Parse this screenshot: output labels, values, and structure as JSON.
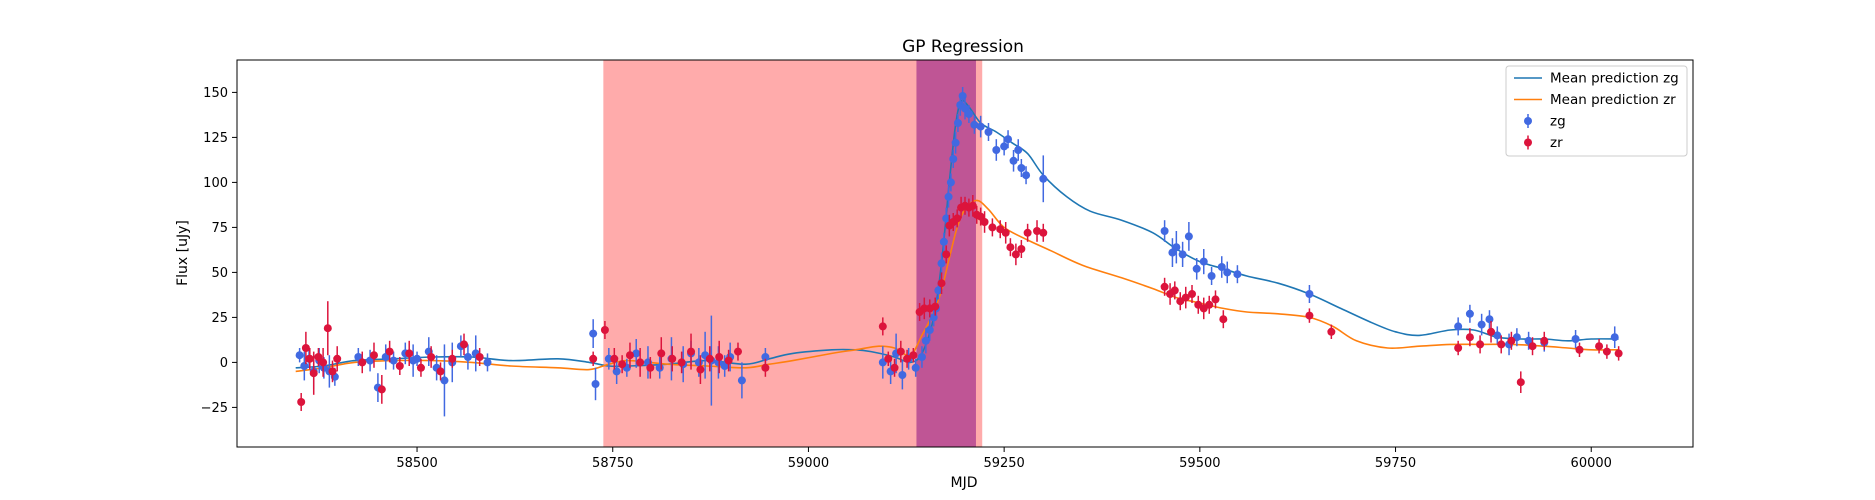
{
  "chart_data": {
    "type": "scatter",
    "title": "GP Regression",
    "xlabel": "MJD",
    "ylabel": "Flux [uJy]",
    "xlim": [
      58270,
      60130
    ],
    "ylim": [
      -47,
      168
    ],
    "xticks": [
      58500,
      58750,
      59000,
      59250,
      59500,
      59750,
      60000
    ],
    "yticks": [
      -25,
      0,
      25,
      50,
      75,
      100,
      125,
      150
    ],
    "grid": false,
    "legend_position": "top-right",
    "colors": {
      "zg_line": "#1f77b4",
      "zr_line": "#ff7f0e",
      "zg_points": "#4169e1",
      "zr_points": "#dc143c",
      "span_red": "#ff0000",
      "span_purple": "#800080"
    },
    "spans": [
      {
        "x_start": 58738,
        "x_end": 59222,
        "color": "#ff0000",
        "alpha": 0.33
      },
      {
        "x_start": 59138,
        "x_end": 59214,
        "color": "#800080",
        "alpha": 0.5
      }
    ],
    "series": [
      {
        "name": "Mean prediction zg",
        "kind": "line",
        "color": "#1f77b4",
        "x": [
          58345,
          58380,
          58420,
          58470,
          58520,
          58570,
          58620,
          58680,
          58720,
          58745,
          58770,
          58820,
          58870,
          58920,
          58950,
          58980,
          59030,
          59060,
          59080,
          59110,
          59130,
          59145,
          59160,
          59170,
          59180,
          59188,
          59195,
          59205,
          59220,
          59240,
          59260,
          59280,
          59300,
          59330,
          59360,
          59400,
          59440,
          59470,
          59500,
          59530,
          59560,
          59600,
          59640,
          59680,
          59720,
          59750,
          59780,
          59820,
          59850,
          59880,
          59910,
          59940,
          59970,
          60000,
          60035
        ],
        "y": [
          -3,
          -2,
          1,
          2,
          3,
          3,
          1,
          2,
          0,
          -2,
          -2,
          -1,
          1,
          -1,
          2,
          5,
          7,
          7,
          6,
          3,
          0,
          5,
          25,
          55,
          100,
          132,
          145,
          142,
          133,
          128,
          122,
          116,
          104,
          92,
          84,
          79,
          72,
          63,
          56,
          52,
          48,
          44,
          38,
          30,
          22,
          17,
          15,
          18,
          18,
          14,
          13,
          13,
          12,
          13,
          13
        ]
      },
      {
        "name": "Mean prediction zr",
        "kind": "line",
        "color": "#ff7f0e",
        "x": [
          58345,
          58380,
          58420,
          58470,
          58520,
          58570,
          58620,
          58680,
          58720,
          58745,
          58770,
          58820,
          58870,
          58920,
          58950,
          58980,
          59030,
          59060,
          59090,
          59110,
          59130,
          59145,
          59160,
          59170,
          59180,
          59190,
          59200,
          59215,
          59230,
          59250,
          59280,
          59310,
          59350,
          59400,
          59440,
          59470,
          59500,
          59530,
          59560,
          59600,
          59640,
          59670,
          59700,
          59740,
          59780,
          59820,
          59860,
          59900,
          59940,
          59970,
          60000,
          60035
        ],
        "y": [
          -5,
          -3,
          0,
          1,
          1,
          0,
          -2,
          -3,
          -4,
          -1,
          1,
          -1,
          -2,
          -3,
          -1,
          1,
          5,
          7,
          9,
          8,
          4,
          15,
          28,
          40,
          58,
          75,
          85,
          90,
          85,
          75,
          68,
          62,
          54,
          47,
          41,
          36,
          33,
          30,
          28,
          27,
          25,
          20,
          12,
          8,
          9,
          10,
          10,
          10,
          9,
          8,
          7,
          7
        ]
      },
      {
        "name": "zg",
        "kind": "errorbar",
        "color": "#4169e1",
        "x": [
          58350,
          58356,
          58362,
          58368,
          58375,
          58381,
          58388,
          58395,
          58425,
          58440,
          58450,
          58460,
          58470,
          58485,
          58495,
          58500,
          58515,
          58525,
          58535,
          58545,
          58556,
          58565,
          58575,
          58590,
          58725,
          58728,
          58745,
          58755,
          58768,
          58780,
          58795,
          58810,
          58825,
          58840,
          58850,
          58860,
          58868,
          58876,
          58885,
          58893,
          58900,
          58915,
          58945,
          59095,
          59105,
          59112,
          59120,
          59128,
          59137,
          59145,
          59150,
          59155,
          59160,
          59163,
          59166,
          59170,
          59173,
          59176,
          59179,
          59182,
          59185,
          59188,
          59191,
          59194,
          59197,
          59200,
          59205,
          59212,
          59220,
          59230,
          59240,
          59250,
          59255,
          59262,
          59268,
          59272,
          59278,
          59300,
          59455,
          59465,
          59470,
          59478,
          59486,
          59496,
          59505,
          59515,
          59528,
          59535,
          59548,
          59640,
          59830,
          59845,
          59860,
          59870,
          59880,
          59895,
          59905,
          59920,
          59940,
          59980,
          60030
        ],
        "y": [
          4,
          -2,
          2,
          -5,
          1,
          -3,
          -5,
          -8,
          3,
          1,
          -14,
          3,
          1,
          5,
          1,
          2,
          6,
          -3,
          -10,
          0,
          9,
          3,
          5,
          0,
          16,
          -12,
          2,
          -5,
          -3,
          5,
          0,
          -3,
          2,
          -1,
          5,
          0,
          4,
          1,
          0,
          -2,
          3,
          -10,
          3,
          0,
          -5,
          5,
          -7,
          2,
          -3,
          3,
          12,
          18,
          25,
          30,
          40,
          55,
          67,
          80,
          92,
          100,
          113,
          122,
          133,
          143,
          148,
          141,
          138,
          132,
          131,
          128,
          118,
          120,
          124,
          112,
          118,
          108,
          104,
          102,
          73,
          61,
          64,
          60,
          70,
          52,
          56,
          48,
          53,
          50,
          49,
          38,
          20,
          27,
          21,
          24,
          15,
          10,
          14,
          12,
          11,
          13,
          14
        ],
        "yerr": [
          4,
          8,
          5,
          10,
          7,
          6,
          9,
          5,
          5,
          6,
          8,
          7,
          5,
          6,
          9,
          4,
          8,
          7,
          20,
          11,
          6,
          7,
          10,
          5,
          8,
          9,
          6,
          7,
          5,
          8,
          9,
          6,
          12,
          10,
          7,
          8,
          13,
          25,
          9,
          6,
          8,
          10,
          5,
          9,
          7,
          11,
          8,
          6,
          5,
          6,
          7,
          6,
          5,
          6,
          5,
          6,
          5,
          6,
          6,
          5,
          5,
          6,
          5,
          6,
          5,
          6,
          5,
          5,
          6,
          5,
          6,
          5,
          5,
          6,
          6,
          5,
          5,
          13,
          6,
          8,
          9,
          7,
          8,
          6,
          7,
          5,
          6,
          6,
          5,
          5,
          5,
          5,
          6,
          5,
          5,
          6,
          5,
          5,
          5,
          5,
          6
        ]
      },
      {
        "name": "zr",
        "kind": "errorbar",
        "color": "#dc143c",
        "x": [
          58352,
          58358,
          58363,
          58368,
          58374,
          58380,
          58386,
          58392,
          58398,
          58430,
          58445,
          58455,
          58465,
          58478,
          58490,
          58505,
          58518,
          58530,
          58545,
          58560,
          58580,
          58725,
          58740,
          58752,
          58762,
          58772,
          58785,
          58798,
          58812,
          58826,
          58838,
          58850,
          58862,
          58874,
          58886,
          58898,
          58910,
          58945,
          59095,
          59102,
          59110,
          59118,
          59126,
          59134,
          59142,
          59148,
          59155,
          59162,
          59170,
          59176,
          59180,
          59185,
          59190,
          59195,
          59200,
          59205,
          59210,
          59215,
          59220,
          59225,
          59235,
          59245,
          59252,
          59258,
          59265,
          59272,
          59280,
          59292,
          59300,
          59455,
          59462,
          59468,
          59475,
          59482,
          59490,
          59498,
          59505,
          59512,
          59520,
          59530,
          59640,
          59668,
          59830,
          59845,
          59858,
          59872,
          59885,
          59898,
          59910,
          59925,
          59940,
          59985,
          60010,
          60020,
          60035
        ],
        "y": [
          -22,
          8,
          2,
          -6,
          3,
          0,
          19,
          -5,
          2,
          0,
          4,
          -15,
          6,
          -2,
          5,
          -3,
          3,
          -5,
          2,
          10,
          3,
          2,
          18,
          2,
          -1,
          4,
          0,
          -3,
          5,
          2,
          0,
          6,
          -4,
          2,
          3,
          1,
          6,
          -3,
          20,
          2,
          -3,
          6,
          2,
          4,
          28,
          30,
          30,
          31,
          44,
          60,
          76,
          78,
          80,
          86,
          87,
          86,
          87,
          82,
          81,
          78,
          75,
          74,
          72,
          64,
          60,
          63,
          72,
          73,
          72,
          42,
          38,
          40,
          34,
          36,
          38,
          32,
          30,
          32,
          35,
          24,
          26,
          17,
          8,
          14,
          10,
          17,
          10,
          12,
          -11,
          9,
          12,
          7,
          9,
          6,
          5
        ],
        "yerr": [
          5,
          9,
          6,
          12,
          5,
          8,
          15,
          6,
          7,
          6,
          7,
          8,
          6,
          5,
          7,
          5,
          6,
          5,
          5,
          6,
          5,
          4,
          5,
          6,
          5,
          7,
          8,
          6,
          9,
          7,
          6,
          10,
          8,
          7,
          9,
          6,
          5,
          5,
          5,
          4,
          5,
          6,
          5,
          4,
          5,
          6,
          5,
          5,
          6,
          5,
          6,
          5,
          5,
          6,
          5,
          5,
          6,
          5,
          5,
          6,
          5,
          5,
          6,
          5,
          6,
          5,
          5,
          6,
          5,
          5,
          6,
          5,
          5,
          6,
          5,
          5,
          6,
          5,
          5,
          5,
          4,
          4,
          4,
          5,
          5,
          6,
          5,
          5,
          6,
          5,
          5,
          4,
          4,
          4,
          4
        ]
      }
    ],
    "legend": [
      {
        "label": "Mean prediction zg",
        "kind": "line",
        "color": "#1f77b4"
      },
      {
        "label": "Mean prediction zr",
        "kind": "line",
        "color": "#ff7f0e"
      },
      {
        "label": "zg",
        "kind": "marker",
        "color": "#4169e1"
      },
      {
        "label": "zr",
        "kind": "marker",
        "color": "#dc143c"
      }
    ]
  }
}
